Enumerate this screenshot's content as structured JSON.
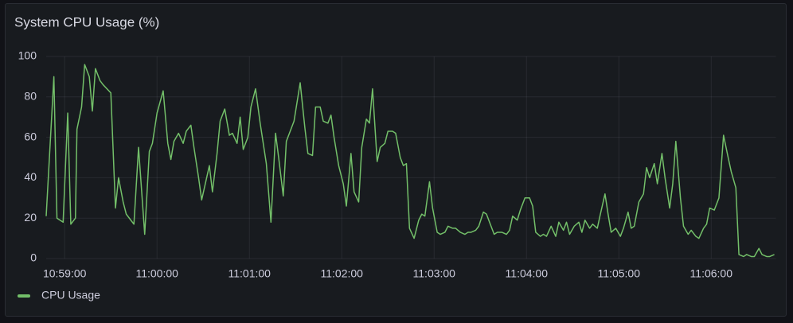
{
  "chart_data": {
    "type": "line",
    "title": "System CPU Usage (%)",
    "x": [
      "10:58:48",
      "10:58:53",
      "10:58:55",
      "10:58:59",
      "10:59:02",
      "10:59:04",
      "10:59:07",
      "10:59:08",
      "10:59:11",
      "10:59:13",
      "10:59:16",
      "10:59:18",
      "10:59:20",
      "10:59:23",
      "10:59:25",
      "10:59:30",
      "10:59:33",
      "10:59:35",
      "10:59:38",
      "10:59:40",
      "10:59:45",
      "10:59:48",
      "10:59:52",
      "10:59:55",
      "10:59:57",
      "11:00:00",
      "11:00:04",
      "11:00:07",
      "11:00:09",
      "11:00:11",
      "11:00:14",
      "11:00:17",
      "11:00:19",
      "11:00:22",
      "11:00:24",
      "11:00:27",
      "11:00:29",
      "11:00:34",
      "11:00:36",
      "11:00:39",
      "11:00:41",
      "11:00:44",
      "11:00:47",
      "11:00:49",
      "11:00:52",
      "11:00:54",
      "11:00:56",
      "11:00:59",
      "11:01:01",
      "11:01:04",
      "11:01:07",
      "11:01:11",
      "11:01:14",
      "11:01:17",
      "11:01:19",
      "11:01:22",
      "11:01:24",
      "11:01:26",
      "11:01:29",
      "11:01:33",
      "11:01:36",
      "11:01:38",
      "11:01:41",
      "11:01:43",
      "11:01:46",
      "11:01:48",
      "11:01:51",
      "11:01:53",
      "11:01:55",
      "11:01:58",
      "11:02:01",
      "11:02:03",
      "11:02:06",
      "11:02:08",
      "11:02:11",
      "11:02:13",
      "11:02:16",
      "11:02:18",
      "11:02:20",
      "11:02:23",
      "11:02:25",
      "11:02:28",
      "11:02:30",
      "11:02:33",
      "11:02:35",
      "11:02:38",
      "11:02:40",
      "11:02:42",
      "11:02:44",
      "11:02:47",
      "11:02:50",
      "11:02:52",
      "11:02:54",
      "11:02:57",
      "11:02:59",
      "11:03:02",
      "11:03:04",
      "11:03:07",
      "11:03:09",
      "11:03:12",
      "11:03:14",
      "11:03:17",
      "11:03:20",
      "11:03:22",
      "11:03:24",
      "11:03:27",
      "11:03:29",
      "11:03:32",
      "11:03:34",
      "11:03:37",
      "11:03:39",
      "11:03:41",
      "11:03:44",
      "11:03:47",
      "11:03:49",
      "11:03:51",
      "11:03:54",
      "11:03:56",
      "11:03:59",
      "11:04:02",
      "11:04:04",
      "11:04:06",
      "11:04:09",
      "11:04:11",
      "11:04:13",
      "11:04:16",
      "11:04:19",
      "11:04:21",
      "11:04:24",
      "11:04:26",
      "11:04:28",
      "11:04:31",
      "11:04:34",
      "11:04:36",
      "11:04:38",
      "11:04:41",
      "11:04:43",
      "11:04:46",
      "11:04:48",
      "11:04:51",
      "11:04:53",
      "11:04:55",
      "11:04:58",
      "11:05:01",
      "11:05:03",
      "11:05:06",
      "11:05:08",
      "11:05:10",
      "11:05:13",
      "11:05:16",
      "11:05:18",
      "11:05:20",
      "11:05:23",
      "11:05:25",
      "11:05:28",
      "11:05:30",
      "11:05:33",
      "11:05:35",
      "11:05:37",
      "11:05:40",
      "11:05:42",
      "11:05:45",
      "11:05:47",
      "11:05:50",
      "11:05:52",
      "11:05:55",
      "11:05:57",
      "11:05:59",
      "11:06:02",
      "11:06:05",
      "11:06:08",
      "11:06:11",
      "11:06:13",
      "11:06:16",
      "11:06:18",
      "11:06:21",
      "11:06:23",
      "11:06:26",
      "11:06:28",
      "11:06:31",
      "11:06:33",
      "11:06:36",
      "11:06:38",
      "11:06:41"
    ],
    "series": [
      {
        "name": "CPU Usage",
        "color": "#73bf69",
        "values": [
          21,
          90,
          20,
          18,
          72,
          17,
          20,
          64,
          75,
          96,
          90,
          73,
          94,
          88,
          86,
          82,
          25,
          40,
          28,
          22,
          17,
          55,
          12,
          53,
          57,
          72,
          83,
          57,
          49,
          58,
          62,
          57,
          63,
          66,
          55,
          40,
          29,
          46,
          33,
          52,
          68,
          74,
          61,
          62,
          57,
          70,
          54,
          60,
          75,
          84,
          67,
          47,
          18,
          62,
          50,
          31,
          58,
          62,
          68,
          87,
          65,
          52,
          51,
          75,
          75,
          68,
          67,
          71,
          60,
          46,
          37,
          26,
          52,
          33,
          28,
          55,
          69,
          67,
          84,
          48,
          55,
          57,
          63,
          63,
          62,
          50,
          46,
          47,
          15,
          10,
          19,
          22,
          21,
          38,
          25,
          13,
          12,
          13,
          16,
          15,
          15,
          13,
          12,
          13,
          13,
          14,
          16,
          23,
          22,
          16,
          12,
          13,
          13,
          12,
          14,
          21,
          19,
          24,
          30,
          30,
          26,
          13,
          11,
          12,
          11,
          16,
          11,
          18,
          14,
          18,
          12,
          16,
          18,
          13,
          19,
          15,
          17,
          15,
          22,
          32,
          22,
          13,
          15,
          11,
          15,
          23,
          15,
          16,
          28,
          32,
          45,
          40,
          47,
          37,
          52,
          40,
          25,
          37,
          58,
          30,
          16,
          12,
          14,
          11,
          10,
          15,
          17,
          25,
          24,
          30,
          61,
          50,
          43,
          35,
          2,
          1,
          2,
          1,
          1,
          5,
          2,
          1,
          1,
          2
        ]
      }
    ],
    "xlim": [
      "10:58:48",
      "11:06:42"
    ],
    "xticks": [
      "10:59:00",
      "11:00:00",
      "11:01:00",
      "11:02:00",
      "11:03:00",
      "11:04:00",
      "11:05:00",
      "11:06:00"
    ],
    "ylim": [
      0,
      100
    ],
    "yticks": [
      0,
      20,
      40,
      60,
      80,
      100
    ],
    "grid": true,
    "legend": "bottom-left"
  }
}
